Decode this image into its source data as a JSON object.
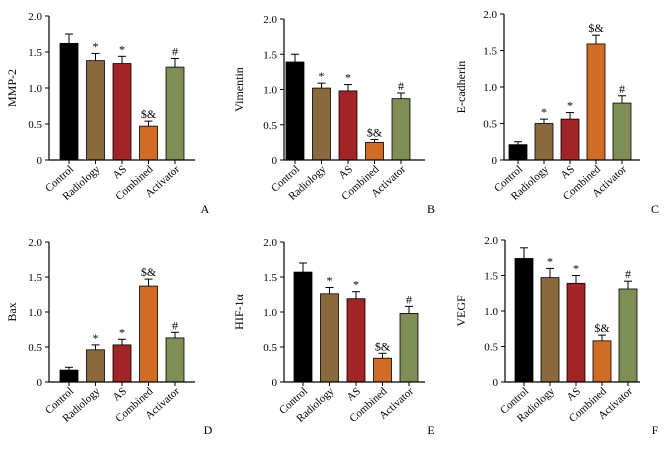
{
  "figure": {
    "colors": {
      "Control": "#000000",
      "Radiology": "#8a6a3c",
      "AS": "#a12526",
      "Combined": "#cf6d26",
      "Activator": "#7e8e56",
      "axis": "#000000"
    }
  },
  "chart_data": [
    {
      "type": "bar",
      "panel": "A",
      "ylabel": "MMP-2",
      "categories": [
        "Control",
        "Radiology",
        "AS",
        "Combined",
        "Activator"
      ],
      "values": [
        1.62,
        1.38,
        1.34,
        0.47,
        1.29
      ],
      "errors": [
        0.13,
        0.1,
        0.1,
        0.07,
        0.12
      ],
      "significance": [
        "",
        "*",
        "*",
        "$&",
        "#"
      ],
      "ylim": [
        0,
        2.0
      ],
      "yticks": [
        0,
        0.5,
        1.0,
        1.5,
        2.0
      ],
      "ytick_labels": [
        "0",
        "0.5",
        "1.0",
        "1.5",
        "2.0"
      ]
    },
    {
      "type": "bar",
      "panel": "B",
      "ylabel": "Vimentin",
      "categories": [
        "Control",
        "Radiology",
        "AS",
        "Combined",
        "Activator"
      ],
      "values": [
        1.39,
        1.02,
        0.98,
        0.25,
        0.87
      ],
      "errors": [
        0.11,
        0.07,
        0.09,
        0.04,
        0.08
      ],
      "significance": [
        "",
        "*",
        "*",
        "$&",
        "#"
      ],
      "ylim": [
        0,
        2.0
      ],
      "yticks": [
        0,
        0.5,
        1.0,
        1.5,
        2.0
      ],
      "ytick_labels": [
        "0",
        "0.5",
        "1.0",
        "1.5",
        "2.0"
      ]
    },
    {
      "type": "bar",
      "panel": "C",
      "ylabel": "E-cadherin",
      "categories": [
        "Control",
        "Radiology",
        "AS",
        "Combined",
        "Activator"
      ],
      "values": [
        0.21,
        0.5,
        0.56,
        1.59,
        0.78
      ],
      "errors": [
        0.04,
        0.06,
        0.09,
        0.12,
        0.1
      ],
      "significance": [
        "",
        "*",
        "*",
        "$&",
        "#"
      ],
      "ylim": [
        0,
        2.0
      ],
      "yticks": [
        0,
        0.5,
        1.0,
        1.5,
        2.0
      ],
      "ytick_labels": [
        "0",
        "0.5",
        "1.0",
        "1.5",
        "2.0"
      ]
    },
    {
      "type": "bar",
      "panel": "D",
      "ylabel": "Bax",
      "categories": [
        "Control",
        "Radiology",
        "AS",
        "Combined",
        "Activator"
      ],
      "values": [
        0.17,
        0.46,
        0.53,
        1.37,
        0.63
      ],
      "errors": [
        0.04,
        0.07,
        0.08,
        0.1,
        0.08
      ],
      "significance": [
        "",
        "*",
        "*",
        "$&",
        "#"
      ],
      "ylim": [
        0,
        2.0
      ],
      "yticks": [
        0,
        0.5,
        1.0,
        1.5,
        2.0
      ],
      "ytick_labels": [
        "0",
        "0.5",
        "1.0",
        "1.5",
        "2.0"
      ]
    },
    {
      "type": "bar",
      "panel": "E",
      "ylabel": "HIF-1α",
      "categories": [
        "Control",
        "Radiology",
        "AS",
        "Combined",
        "Activator"
      ],
      "values": [
        1.57,
        1.26,
        1.19,
        0.34,
        0.98
      ],
      "errors": [
        0.13,
        0.09,
        0.1,
        0.07,
        0.1
      ],
      "significance": [
        "",
        "*",
        "*",
        "$&",
        "#"
      ],
      "ylim": [
        0,
        2.0
      ],
      "yticks": [
        0,
        0.5,
        1.0,
        1.5,
        2.0
      ],
      "ytick_labels": [
        "0",
        "0.5",
        "1.0",
        "1.5",
        "2.0"
      ]
    },
    {
      "type": "bar",
      "panel": "F",
      "ylabel": "VEGF",
      "categories": [
        "Control",
        "Radiology",
        "AS",
        "Combined",
        "Activator"
      ],
      "values": [
        1.74,
        1.47,
        1.39,
        0.58,
        1.31
      ],
      "errors": [
        0.15,
        0.13,
        0.11,
        0.08,
        0.11
      ],
      "significance": [
        "",
        "*",
        "*",
        "$&",
        "#"
      ],
      "ylim": [
        0,
        2.0
      ],
      "yticks": [
        0,
        0.5,
        1.0,
        1.5,
        2.0
      ],
      "ytick_labels": [
        "0",
        "0.5",
        "1.0",
        "1.5",
        "2.0"
      ]
    }
  ]
}
